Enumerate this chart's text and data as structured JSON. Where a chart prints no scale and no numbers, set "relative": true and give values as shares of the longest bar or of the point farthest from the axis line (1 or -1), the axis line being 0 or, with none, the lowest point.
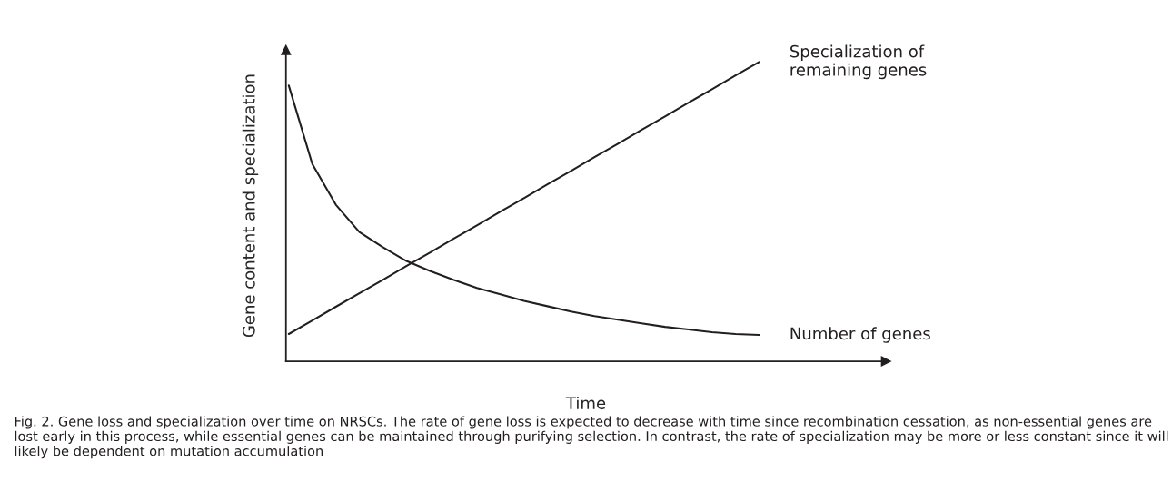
{
  "chart_data": {
    "type": "line",
    "relative": true,
    "xlabel": "Time",
    "ylabel": "Gene content and specialization",
    "categories": [
      null,
      null,
      null,
      null,
      null,
      null,
      null,
      null,
      null,
      null,
      null,
      null,
      null,
      null,
      null,
      null,
      null,
      null,
      null,
      null,
      null
    ],
    "series": [
      {
        "name": "Specialization of\nremaining genes",
        "color": "#231f20",
        "values": [
          0.091,
          0.136,
          0.182,
          0.227,
          0.272,
          0.318,
          0.363,
          0.409,
          0.454,
          0.5,
          0.545,
          0.591,
          0.636,
          0.682,
          0.727,
          0.773,
          0.818,
          0.864,
          0.909,
          0.955,
          1.0
        ]
      },
      {
        "name": "Number of genes",
        "color": "#231f20",
        "values": [
          0.921,
          0.659,
          0.523,
          0.432,
          0.381,
          0.335,
          0.302,
          0.272,
          0.245,
          0.224,
          0.202,
          0.184,
          0.166,
          0.151,
          0.139,
          0.127,
          0.115,
          0.106,
          0.097,
          0.091,
          0.088
        ]
      }
    ],
    "marker": "none",
    "line_style": "solid",
    "annotations": [
      "Fig. 2. Gene loss and specialization over time on NRSCs. The rate of gene loss is expected to decrease with time since recombination cessation, as non-essential genes are lost early in this process, while essential genes can be maintained through purifying selection. In contrast, the rate of specialization may be more or less constant since it will likely be dependent on mutation accumulation"
    ]
  }
}
